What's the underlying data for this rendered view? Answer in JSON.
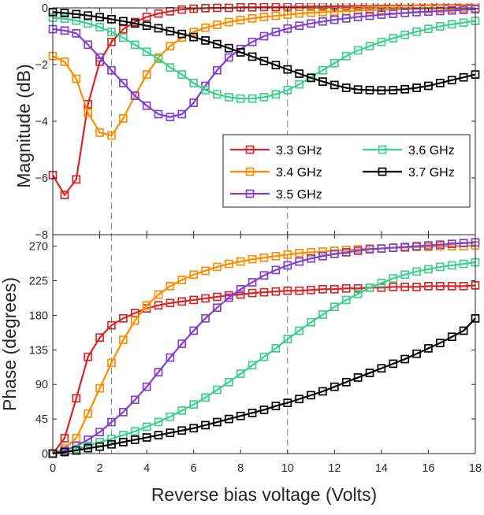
{
  "chart_data": {
    "type": "line",
    "xlabel": "Reverse bias voltage (Volts)",
    "xlim": [
      0,
      18
    ],
    "xticks": [
      0,
      2,
      4,
      6,
      8,
      10,
      12,
      14,
      16,
      18
    ],
    "reference_lines_x": [
      2.5,
      10
    ],
    "legend_location": "upper-right inside magnitude panel",
    "panels": [
      {
        "id": "magnitude",
        "ylabel": "Magnitude (dB)",
        "ylim": [
          -8,
          0
        ],
        "yticks": [
          -8,
          -6,
          -4,
          -2,
          0
        ],
        "legend": true,
        "series": [
          {
            "name": "3.3 GHz",
            "color": "#d62728",
            "marker": "square",
            "x": [
              0,
              0.5,
              1,
              1.5,
              2,
              2.5,
              3,
              3.5,
              4,
              4.5,
              5,
              5.5,
              6,
              6.5,
              7,
              7.5,
              8,
              8.5,
              9,
              9.5,
              10,
              10.5,
              11,
              11.5,
              12,
              12.5,
              13,
              13.5,
              14,
              14.5,
              15,
              15.5,
              16,
              16.5,
              17,
              17.5,
              18
            ],
            "y": [
              -5.9,
              -6.6,
              -6.05,
              -3.4,
              -1.9,
              -1.2,
              -0.75,
              -0.5,
              -0.32,
              -0.2,
              -0.12,
              -0.06,
              -0.03,
              -0.01,
              0,
              0,
              0.02,
              0.02,
              0.03,
              0.03,
              0.04,
              0.04,
              0.05,
              0.05,
              0.06,
              0.06,
              0.07,
              0.07,
              0.08,
              0.08,
              0.08,
              0.09,
              0.09,
              0.1,
              0.1,
              0.1,
              0.1
            ]
          },
          {
            "name": "3.4 GHz",
            "color": "#ff8c00",
            "marker": "square",
            "x": [
              0,
              0.5,
              1,
              1.5,
              2,
              2.5,
              3,
              3.5,
              4,
              4.5,
              5,
              5.5,
              6,
              6.5,
              7,
              7.5,
              8,
              8.5,
              9,
              9.5,
              10,
              10.5,
              11,
              11.5,
              12,
              12.5,
              13,
              13.5,
              14,
              14.5,
              15,
              15.5,
              16,
              16.5,
              17,
              17.5,
              18
            ],
            "y": [
              -1.7,
              -1.9,
              -2.5,
              -3.7,
              -4.4,
              -4.5,
              -3.9,
              -3.1,
              -2.35,
              -1.75,
              -1.35,
              -1.05,
              -0.85,
              -0.7,
              -0.6,
              -0.5,
              -0.43,
              -0.37,
              -0.32,
              -0.28,
              -0.24,
              -0.2,
              -0.17,
              -0.15,
              -0.13,
              -0.11,
              -0.09,
              -0.08,
              -0.07,
              -0.06,
              -0.05,
              -0.04,
              -0.04,
              -0.03,
              -0.03,
              -0.02,
              -0.02
            ]
          },
          {
            "name": "3.5 GHz",
            "color": "#8040d0",
            "marker": "square",
            "x": [
              0,
              0.5,
              1,
              1.5,
              2,
              2.5,
              3,
              3.5,
              4,
              4.5,
              5,
              5.5,
              6,
              6.5,
              7,
              7.5,
              8,
              8.5,
              9,
              9.5,
              10,
              10.5,
              11,
              11.5,
              12,
              12.5,
              13,
              13.5,
              14,
              14.5,
              15,
              15.5,
              16,
              16.5,
              17,
              17.5,
              18
            ],
            "y": [
              -0.75,
              -0.8,
              -0.9,
              -1.3,
              -1.75,
              -2.2,
              -2.65,
              -3.1,
              -3.45,
              -3.75,
              -3.85,
              -3.75,
              -3.35,
              -2.75,
              -2.2,
              -1.75,
              -1.45,
              -1.2,
              -1.0,
              -0.85,
              -0.73,
              -0.63,
              -0.55,
              -0.48,
              -0.42,
              -0.37,
              -0.32,
              -0.28,
              -0.24,
              -0.21,
              -0.18,
              -0.15,
              -0.13,
              -0.11,
              -0.09,
              -0.07,
              -0.05
            ]
          },
          {
            "name": "3.6 GHz",
            "color": "#3ecf8e",
            "marker": "square",
            "x": [
              0,
              0.5,
              1,
              1.5,
              2,
              2.5,
              3,
              3.5,
              4,
              4.5,
              5,
              5.5,
              6,
              6.5,
              7,
              7.5,
              8,
              8.5,
              9,
              9.5,
              10,
              10.5,
              11,
              11.5,
              12,
              12.5,
              13,
              13.5,
              14,
              14.5,
              15,
              15.5,
              16,
              16.5,
              17,
              17.5,
              18
            ],
            "y": [
              -0.35,
              -0.38,
              -0.45,
              -0.55,
              -0.68,
              -0.85,
              -1.05,
              -1.3,
              -1.55,
              -1.8,
              -2.1,
              -2.35,
              -2.65,
              -2.9,
              -3.05,
              -3.15,
              -3.2,
              -3.2,
              -3.15,
              -3.05,
              -2.9,
              -2.7,
              -2.45,
              -2.2,
              -1.95,
              -1.7,
              -1.5,
              -1.35,
              -1.2,
              -1.07,
              -0.95,
              -0.84,
              -0.74,
              -0.65,
              -0.58,
              -0.52,
              -0.46
            ]
          },
          {
            "name": "3.7 GHz",
            "color": "#000000",
            "marker": "square",
            "x": [
              0,
              0.5,
              1,
              1.5,
              2,
              2.5,
              3,
              3.5,
              4,
              4.5,
              5,
              5.5,
              6,
              6.5,
              7,
              7.5,
              8,
              8.5,
              9,
              9.5,
              10,
              10.5,
              11,
              11.5,
              12,
              12.5,
              13,
              13.5,
              14,
              14.5,
              15,
              15.5,
              16,
              16.5,
              17,
              17.5,
              18
            ],
            "y": [
              -0.15,
              -0.18,
              -0.22,
              -0.27,
              -0.33,
              -0.4,
              -0.47,
              -0.55,
              -0.63,
              -0.72,
              -0.82,
              -0.92,
              -1.03,
              -1.15,
              -1.28,
              -1.42,
              -1.57,
              -1.72,
              -1.87,
              -2.02,
              -2.17,
              -2.32,
              -2.47,
              -2.6,
              -2.72,
              -2.82,
              -2.88,
              -2.9,
              -2.91,
              -2.9,
              -2.87,
              -2.82,
              -2.75,
              -2.65,
              -2.55,
              -2.45,
              -2.35
            ]
          }
        ]
      },
      {
        "id": "phase",
        "ylabel": "Phase (degrees)",
        "ylim": [
          0,
          285
        ],
        "yticks": [
          0,
          45,
          90,
          135,
          180,
          225,
          270
        ],
        "legend": false,
        "series": [
          {
            "name": "3.3 GHz",
            "color": "#d62728",
            "marker": "square",
            "x": [
              0,
              0.5,
              1,
              1.5,
              2,
              2.5,
              3,
              3.5,
              4,
              4.5,
              5,
              5.5,
              6,
              6.5,
              7,
              7.5,
              8,
              8.5,
              9,
              9.5,
              10,
              10.5,
              11,
              11.5,
              12,
              12.5,
              13,
              13.5,
              14,
              14.5,
              15,
              15.5,
              16,
              16.5,
              17,
              17.5,
              18
            ],
            "y": [
              0,
              20,
              72,
              126,
              151,
              167,
              176,
              183,
              189,
              193,
              196,
              198,
              200,
              202,
              204,
              206,
              207,
              209,
              210,
              211,
              212,
              212,
              213,
              214,
              214,
              215,
              215,
              216,
              216,
              217,
              217,
              217,
              218,
              218,
              218,
              218,
              219
            ]
          },
          {
            "name": "3.4 GHz",
            "color": "#ff8c00",
            "marker": "square",
            "x": [
              0,
              0.5,
              1,
              1.5,
              2,
              2.5,
              3,
              3.5,
              4,
              4.5,
              5,
              5.5,
              6,
              6.5,
              7,
              7.5,
              8,
              8.5,
              9,
              9.5,
              10,
              10.5,
              11,
              11.5,
              12,
              12.5,
              13,
              13.5,
              14,
              14.5,
              15,
              15.5,
              16,
              16.5,
              17,
              17.5,
              18
            ],
            "y": [
              0,
              7,
              20,
              52,
              85,
              118,
              148,
              173,
              193,
              207,
              218,
              226,
              233,
              238,
              243,
              247,
              250,
              253,
              255,
              257,
              259,
              261,
              262,
              263,
              264,
              265,
              266,
              267,
              267,
              268,
              268,
              269,
              269,
              270,
              270,
              270,
              271
            ]
          },
          {
            "name": "3.5 GHz",
            "color": "#8040d0",
            "marker": "square",
            "x": [
              0,
              0.5,
              1,
              1.5,
              2,
              2.5,
              3,
              3.5,
              4,
              4.5,
              5,
              5.5,
              6,
              6.5,
              7,
              7.5,
              8,
              8.5,
              9,
              9.5,
              10,
              10.5,
              11,
              11.5,
              12,
              12.5,
              13,
              13.5,
              14,
              14.5,
              15,
              15.5,
              16,
              16.5,
              17,
              17.5,
              18
            ],
            "y": [
              0,
              4,
              10,
              18,
              28,
              41,
              54,
              70,
              87,
              106,
              125,
              143,
              160,
              176,
              190,
              203,
              214,
              223,
              232,
              239,
              245,
              250,
              254,
              257,
              260,
              262,
              264,
              266,
              267,
              268,
              269,
              270,
              271,
              272,
              273,
              274,
              275
            ]
          },
          {
            "name": "3.6 GHz",
            "color": "#3ecf8e",
            "marker": "square",
            "x": [
              0,
              0.5,
              1,
              1.5,
              2,
              2.5,
              3,
              3.5,
              4,
              4.5,
              5,
              5.5,
              6,
              6.5,
              7,
              7.5,
              8,
              8.5,
              9,
              9.5,
              10,
              10.5,
              11,
              11.5,
              12,
              12.5,
              13,
              13.5,
              14,
              14.5,
              15,
              15.5,
              16,
              16.5,
              17,
              17.5,
              18
            ],
            "y": [
              0,
              2,
              6,
              10,
              15,
              19,
              24,
              29,
              35,
              41,
              48,
              56,
              64,
              73,
              83,
              93,
              104,
              115,
              126,
              137,
              149,
              160,
              171,
              181,
              191,
              200,
              208,
              216,
              222,
              228,
              233,
              237,
              240,
              243,
              245,
              247,
              249
            ]
          },
          {
            "name": "3.7 GHz",
            "color": "#000000",
            "marker": "square",
            "x": [
              0,
              0.5,
              1,
              1.5,
              2,
              2.5,
              3,
              3.5,
              4,
              4.5,
              5,
              5.5,
              6,
              6.5,
              7,
              7.5,
              8,
              8.5,
              9,
              9.5,
              10,
              10.5,
              11,
              11.5,
              12,
              12.5,
              13,
              13.5,
              14,
              14.5,
              15,
              15.5,
              16,
              16.5,
              17,
              17.5,
              18
            ],
            "y": [
              0,
              2,
              4,
              7,
              9,
              12,
              15,
              18,
              21,
              24,
              27,
              30,
              33,
              37,
              41,
              45,
              49,
              53,
              57,
              62,
              66,
              71,
              76,
              81,
              87,
              93,
              99,
              105,
              111,
              117,
              123,
              130,
              137,
              144,
              152,
              160,
              176
            ]
          }
        ]
      }
    ]
  }
}
